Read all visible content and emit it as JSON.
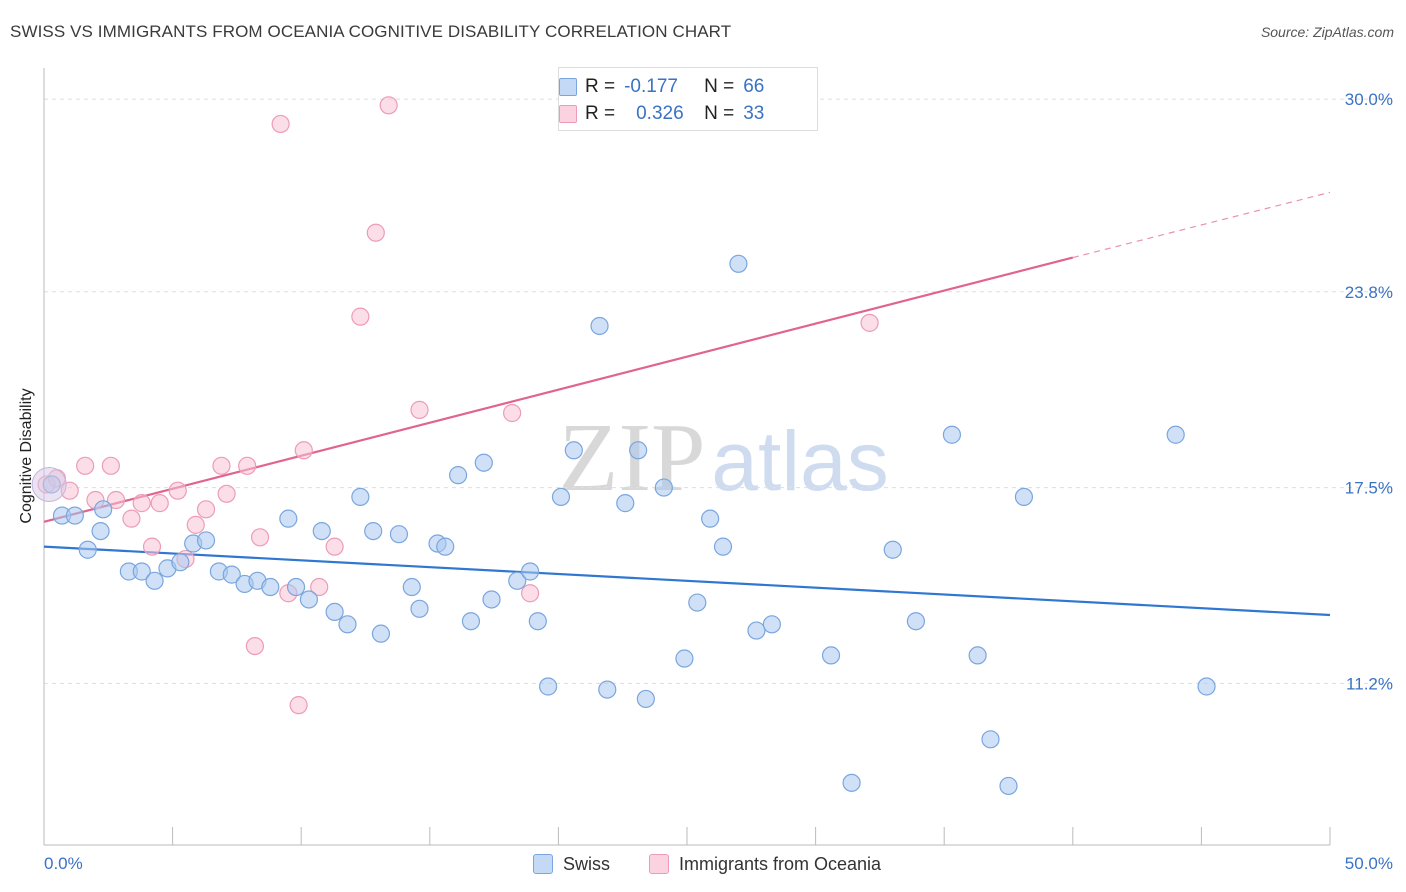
{
  "header": {
    "title": "SWISS VS IMMIGRANTS FROM OCEANIA COGNITIVE DISABILITY CORRELATION CHART",
    "source": "Source: ZipAtlas.com"
  },
  "watermark": {
    "zip": "ZIP",
    "atlas": "atlas"
  },
  "legend": {
    "rows": [
      {
        "r_label": "R =",
        "r_value": "-0.177",
        "n_label": "N =",
        "n_value": "66"
      },
      {
        "r_label": "R =",
        "r_value": "0.326",
        "n_label": "N =",
        "n_value": "33"
      }
    ]
  },
  "bottom_legend": [
    {
      "label": "Swiss"
    },
    {
      "label": "Immigrants from Oceania"
    }
  ],
  "chart_data": {
    "type": "scatter",
    "title": "SWISS VS IMMIGRANTS FROM OCEANIA COGNITIVE DISABILITY CORRELATION CHART",
    "xlabel": "",
    "ylabel": "Cognitive Disability",
    "xlim": [
      0,
      50
    ],
    "ylim": [
      6.0,
      31.0
    ],
    "x_tick_labels": [
      "0.0%",
      "50.0%"
    ],
    "y_ticks": [
      11.2,
      17.5,
      23.8,
      30.0
    ],
    "y_tick_labels": [
      "11.2%",
      "17.5%",
      "23.8%",
      "30.0%"
    ],
    "grid": "horizontal dashed",
    "legend_position": "top-center",
    "series": [
      {
        "name": "Swiss",
        "color": "#a9c8f0",
        "edge_color": "#7aa6de",
        "line_color": "#2f77d0",
        "r": -0.177,
        "n": 66,
        "trend": {
          "x": [
            0,
            50
          ],
          "y": [
            15.6,
            13.4
          ]
        },
        "points": [
          [
            0.3,
            17.6
          ],
          [
            0.7,
            16.6
          ],
          [
            1.2,
            16.6
          ],
          [
            1.7,
            15.5
          ],
          [
            2.2,
            16.1
          ],
          [
            2.3,
            16.8
          ],
          [
            3.3,
            14.8
          ],
          [
            3.8,
            14.8
          ],
          [
            4.3,
            14.5
          ],
          [
            4.8,
            14.9
          ],
          [
            5.3,
            15.1
          ],
          [
            5.8,
            15.7
          ],
          [
            6.3,
            15.8
          ],
          [
            6.8,
            14.8
          ],
          [
            7.3,
            14.7
          ],
          [
            7.8,
            14.4
          ],
          [
            8.3,
            14.5
          ],
          [
            8.8,
            14.3
          ],
          [
            9.5,
            16.5
          ],
          [
            9.8,
            14.3
          ],
          [
            10.3,
            13.9
          ],
          [
            10.8,
            16.1
          ],
          [
            11.3,
            13.5
          ],
          [
            11.8,
            13.1
          ],
          [
            12.3,
            17.2
          ],
          [
            12.8,
            16.1
          ],
          [
            13.1,
            12.8
          ],
          [
            13.8,
            16.0
          ],
          [
            14.3,
            14.3
          ],
          [
            14.6,
            13.6
          ],
          [
            15.3,
            15.7
          ],
          [
            15.6,
            15.6
          ],
          [
            16.1,
            17.9
          ],
          [
            16.6,
            13.2
          ],
          [
            17.1,
            18.3
          ],
          [
            17.4,
            13.9
          ],
          [
            18.4,
            14.5
          ],
          [
            18.9,
            14.8
          ],
          [
            19.2,
            13.2
          ],
          [
            19.6,
            11.1
          ],
          [
            20.1,
            17.2
          ],
          [
            20.6,
            18.7
          ],
          [
            21.6,
            22.7
          ],
          [
            21.9,
            11.0
          ],
          [
            22.6,
            17.0
          ],
          [
            23.1,
            18.7
          ],
          [
            23.4,
            10.7
          ],
          [
            24.1,
            17.5
          ],
          [
            24.9,
            12.0
          ],
          [
            25.4,
            13.8
          ],
          [
            25.9,
            16.5
          ],
          [
            26.4,
            15.6
          ],
          [
            27.0,
            24.7
          ],
          [
            27.7,
            12.9
          ],
          [
            28.3,
            13.1
          ],
          [
            30.6,
            12.1
          ],
          [
            31.4,
            8.0
          ],
          [
            33.0,
            15.5
          ],
          [
            33.9,
            13.2
          ],
          [
            35.3,
            19.2
          ],
          [
            36.3,
            12.1
          ],
          [
            36.8,
            9.4
          ],
          [
            38.1,
            17.2
          ],
          [
            37.5,
            7.9
          ],
          [
            44.0,
            19.2
          ],
          [
            45.2,
            11.1
          ]
        ]
      },
      {
        "name": "Immigrants from Oceania",
        "color": "#f7c3d4",
        "edge_color": "#ee9bb7",
        "line_color": "#e0648c",
        "r": 0.326,
        "n": 33,
        "trend": {
          "x": [
            0,
            40
          ],
          "y": [
            16.4,
            24.9
          ]
        },
        "trend_extension": {
          "x": [
            40,
            50
          ],
          "y": [
            24.9,
            27.0
          ]
        },
        "points": [
          [
            0.1,
            17.6
          ],
          [
            0.5,
            17.8
          ],
          [
            1.0,
            17.4
          ],
          [
            1.6,
            18.2
          ],
          [
            2.0,
            17.1
          ],
          [
            2.6,
            18.2
          ],
          [
            2.8,
            17.1
          ],
          [
            3.4,
            16.5
          ],
          [
            3.8,
            17.0
          ],
          [
            4.2,
            15.6
          ],
          [
            4.5,
            17.0
          ],
          [
            5.2,
            17.4
          ],
          [
            5.5,
            15.2
          ],
          [
            5.9,
            16.3
          ],
          [
            6.3,
            16.8
          ],
          [
            6.9,
            18.2
          ],
          [
            7.1,
            17.3
          ],
          [
            7.9,
            18.2
          ],
          [
            8.2,
            12.4
          ],
          [
            8.4,
            15.9
          ],
          [
            9.2,
            29.2
          ],
          [
            9.5,
            14.1
          ],
          [
            9.9,
            10.5
          ],
          [
            10.1,
            18.7
          ],
          [
            10.7,
            14.3
          ],
          [
            11.3,
            15.6
          ],
          [
            12.3,
            23.0
          ],
          [
            12.9,
            25.7
          ],
          [
            13.4,
            29.8
          ],
          [
            14.6,
            20.0
          ],
          [
            18.2,
            19.9
          ],
          [
            18.9,
            14.1
          ],
          [
            32.1,
            22.8
          ]
        ]
      }
    ]
  }
}
